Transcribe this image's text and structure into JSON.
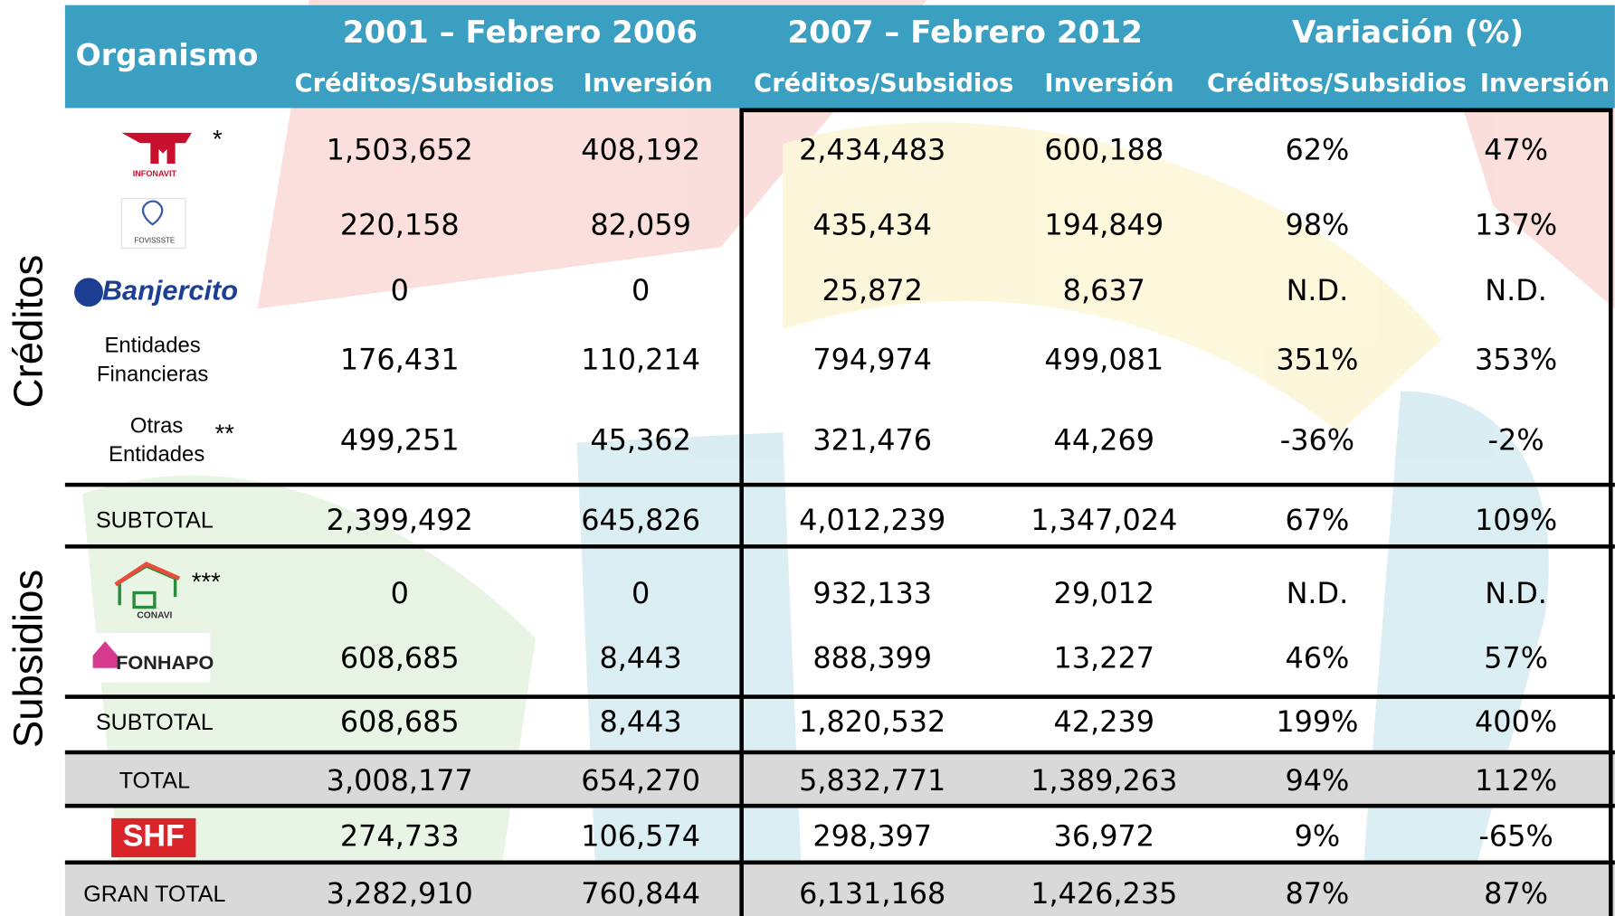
{
  "header": {
    "organismo": "Organismo",
    "periods": [
      "2001 –  Febrero 2006",
      "2007 –  Febrero 2012",
      "Variación (%)"
    ],
    "subheaders": [
      "Créditos/Subsidios",
      "Inversión",
      "Créditos/Subsidios",
      "Inversión",
      "Créditos/Subsidios",
      "Inversión"
    ]
  },
  "side_labels": [
    "Créditos",
    "Subsidios"
  ],
  "table": {
    "rows": [
      {
        "label": "INFONAVIT",
        "note": "*",
        "cells": [
          "1,503,652",
          "408,192",
          "2,434,483",
          "600,188",
          "62%",
          "47%"
        ]
      },
      {
        "label": "FOVISSSTE",
        "cells": [
          "220,158",
          "82,059",
          "435,434",
          "194,849",
          "98%",
          "137%"
        ]
      },
      {
        "label": "Banjercito",
        "cells": [
          "0",
          "0",
          "25,872",
          "8,637",
          "N.D.",
          "N.D."
        ]
      },
      {
        "label": [
          "Entidades",
          "Financieras"
        ],
        "cells": [
          "176,431",
          "110,214",
          "794,974",
          "499,081",
          "351%",
          "353%"
        ]
      },
      {
        "label": [
          "Otras",
          "Entidades"
        ],
        "note": "**",
        "cells": [
          "499,251",
          "45,362",
          "321,476",
          "44,269",
          "-36%",
          "-2%"
        ]
      },
      {
        "label": "SUBTOTAL",
        "cells": [
          "2,399,492",
          "645,826",
          "4,012,239",
          "1,347,024",
          "67%",
          "109%"
        ]
      },
      {
        "label": "CONAVI",
        "note": "***",
        "cells": [
          "0",
          "0",
          "932,133",
          "29,012",
          "N.D.",
          "N.D."
        ]
      },
      {
        "label": "FONHAPO",
        "cells": [
          "608,685",
          "8,443",
          "888,399",
          "13,227",
          "46%",
          "57%"
        ]
      },
      {
        "label": "SUBTOTAL",
        "cells": [
          "608,685",
          "8,443",
          "1,820,532",
          "42,239",
          "199%",
          "400%"
        ]
      },
      {
        "label": "TOTAL",
        "cells": [
          "3,008,177",
          "654,270",
          "5,832,771",
          "1,389,263",
          "94%",
          "112%"
        ]
      },
      {
        "label": "SHF",
        "cells": [
          "274,733",
          "106,574",
          "298,397",
          "36,972",
          "9%",
          "-65%"
        ]
      },
      {
        "label": "GRAN TOTAL",
        "cells": [
          "3,282,910",
          "760,844",
          "6,131,168",
          "1,426,235",
          "87%",
          "87%"
        ]
      }
    ]
  }
}
